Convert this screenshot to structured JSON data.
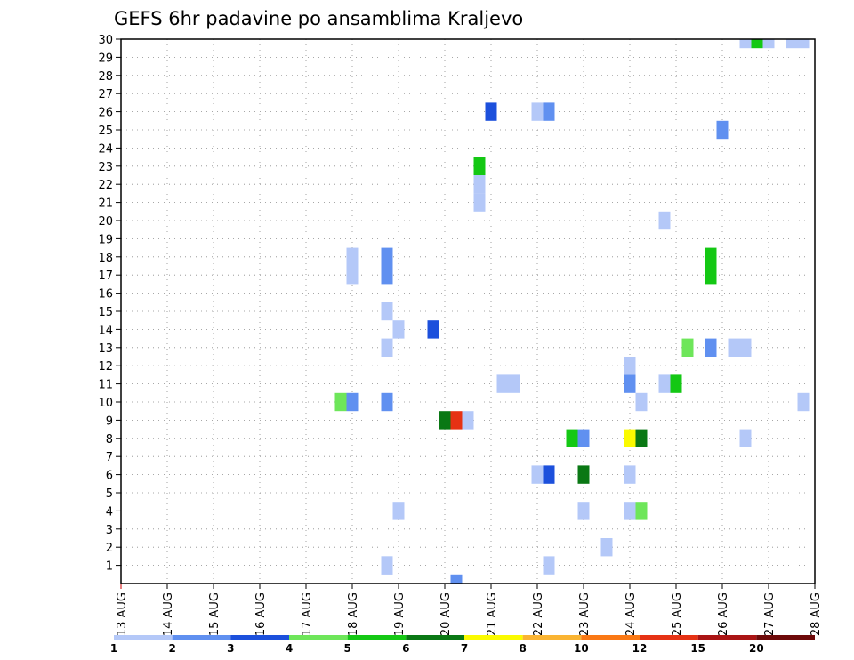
{
  "chart_data": {
    "type": "heatmap",
    "title": "GEFS 6hr padavine po ansamblima Kraljevo",
    "xlabel": "",
    "ylabel": "",
    "x_ticks": [
      "13 AUG",
      "14 AUG",
      "15 AUG",
      "16 AUG",
      "17 AUG",
      "18 AUG",
      "19 AUG",
      "20 AUG",
      "21 AUG",
      "22 AUG",
      "23 AUG",
      "24 AUG",
      "25 AUG",
      "26 AUG",
      "27 AUG",
      "28 AUG"
    ],
    "y_ticks": [
      "1",
      "2",
      "3",
      "4",
      "5",
      "6",
      "7",
      "8",
      "9",
      "10",
      "11",
      "12",
      "13",
      "14",
      "15",
      "16",
      "17",
      "18",
      "19",
      "20",
      "21",
      "22",
      "23",
      "24",
      "25",
      "26",
      "27",
      "28",
      "29",
      "30"
    ],
    "xlim": [
      0,
      15
    ],
    "ylim": [
      0,
      30
    ],
    "grid": true,
    "time_step_days": 0.25,
    "legend": {
      "placement": "bottom",
      "labels": [
        "1",
        "2",
        "3",
        "4",
        "5",
        "6",
        "7",
        "8",
        "10",
        "12",
        "15",
        "20"
      ],
      "colors": [
        "#b4c8f8",
        "#6090f0",
        "#1c50dc",
        "#6ee65a",
        "#14c814",
        "#0a7814",
        "#fafa00",
        "#fab432",
        "#fa7814",
        "#e63214",
        "#aa1414",
        "#6e0a0a"
      ]
    },
    "cells": [
      {
        "day": 5.75,
        "member": 1,
        "value": 1.5
      },
      {
        "day": 9.25,
        "member": 1,
        "value": 1.5
      },
      {
        "day": 10.5,
        "member": 2,
        "value": 1.5
      },
      {
        "day": 5.75,
        "member": 1,
        "value": 1.5
      },
      {
        "day": 6.0,
        "member": 4,
        "value": 1.5
      },
      {
        "day": 10.0,
        "member": 4,
        "value": 1.5
      },
      {
        "day": 11.0,
        "member": 4,
        "value": 1.5
      },
      {
        "day": 11.25,
        "member": 4,
        "value": 4.5
      },
      {
        "day": 9.0,
        "member": 6,
        "value": 1.5
      },
      {
        "day": 9.25,
        "member": 6,
        "value": 3.5
      },
      {
        "day": 10.0,
        "member": 6,
        "value": 6.5
      },
      {
        "day": 11.0,
        "member": 6,
        "value": 1.5
      },
      {
        "day": 9.75,
        "member": 8,
        "value": 5.5
      },
      {
        "day": 10.0,
        "member": 8,
        "value": 2.5
      },
      {
        "day": 11.0,
        "member": 8,
        "value": 7.5
      },
      {
        "day": 11.25,
        "member": 8,
        "value": 6.5
      },
      {
        "day": 13.5,
        "member": 8,
        "value": 1.5
      },
      {
        "day": 7.0,
        "member": 9,
        "value": 6.5
      },
      {
        "day": 7.25,
        "member": 9,
        "value": 12.5
      },
      {
        "day": 7.5,
        "member": 9,
        "value": 1.5
      },
      {
        "day": 4.75,
        "member": 10,
        "value": 4.5
      },
      {
        "day": 5.0,
        "member": 10,
        "value": 2.5
      },
      {
        "day": 5.75,
        "member": 10,
        "value": 2.5
      },
      {
        "day": 11.25,
        "member": 10,
        "value": 1.5
      },
      {
        "day": 14.75,
        "member": 10,
        "value": 1.5
      },
      {
        "day": 8.25,
        "member": 11,
        "value": 1.5
      },
      {
        "day": 8.5,
        "member": 11,
        "value": 1.5
      },
      {
        "day": 11.0,
        "member": 11,
        "value": 2.5
      },
      {
        "day": 11.75,
        "member": 11,
        "value": 1.5
      },
      {
        "day": 12.0,
        "member": 11,
        "value": 5.5
      },
      {
        "day": 11.0,
        "member": 12,
        "value": 1.5
      },
      {
        "day": 5.75,
        "member": 13,
        "value": 1.5
      },
      {
        "day": 12.25,
        "member": 13,
        "value": 4.5
      },
      {
        "day": 12.75,
        "member": 13,
        "value": 2.5
      },
      {
        "day": 13.25,
        "member": 13,
        "value": 1.5
      },
      {
        "day": 13.5,
        "member": 13,
        "value": 1.5
      },
      {
        "day": 6.0,
        "member": 14,
        "value": 1.5
      },
      {
        "day": 6.75,
        "member": 14,
        "value": 3.5
      },
      {
        "day": 5.75,
        "member": 15,
        "value": 1.5
      },
      {
        "day": 5.0,
        "member": 17,
        "value": 1.5
      },
      {
        "day": 5.75,
        "member": 17,
        "value": 2.5
      },
      {
        "day": 12.75,
        "member": 17,
        "value": 5.5
      },
      {
        "day": 5.0,
        "member": 18,
        "value": 1.5
      },
      {
        "day": 5.75,
        "member": 18,
        "value": 2.5
      },
      {
        "day": 12.75,
        "member": 18,
        "value": 5.5
      },
      {
        "day": 11.75,
        "member": 20,
        "value": 1.5
      },
      {
        "day": 7.75,
        "member": 21,
        "value": 1.5
      },
      {
        "day": 7.75,
        "member": 22,
        "value": 1.5
      },
      {
        "day": 7.75,
        "member": 23,
        "value": 5.5
      },
      {
        "day": 13.0,
        "member": 25,
        "value": 2.5
      },
      {
        "day": 8.0,
        "member": 26,
        "value": 3.5
      },
      {
        "day": 9.0,
        "member": 26,
        "value": 1.5
      },
      {
        "day": 9.25,
        "member": 26,
        "value": 2.5
      },
      {
        "day": 13.5,
        "member": 30,
        "value": 1.5
      },
      {
        "day": 13.75,
        "member": 30,
        "value": 5.5
      },
      {
        "day": 14.0,
        "member": 30,
        "value": 1.5
      },
      {
        "day": 14.5,
        "member": 30,
        "value": 1.5
      },
      {
        "day": 14.75,
        "member": 30,
        "value": 1.5
      },
      {
        "day": 7.25,
        "member": 0,
        "value": 2.5
      }
    ]
  }
}
